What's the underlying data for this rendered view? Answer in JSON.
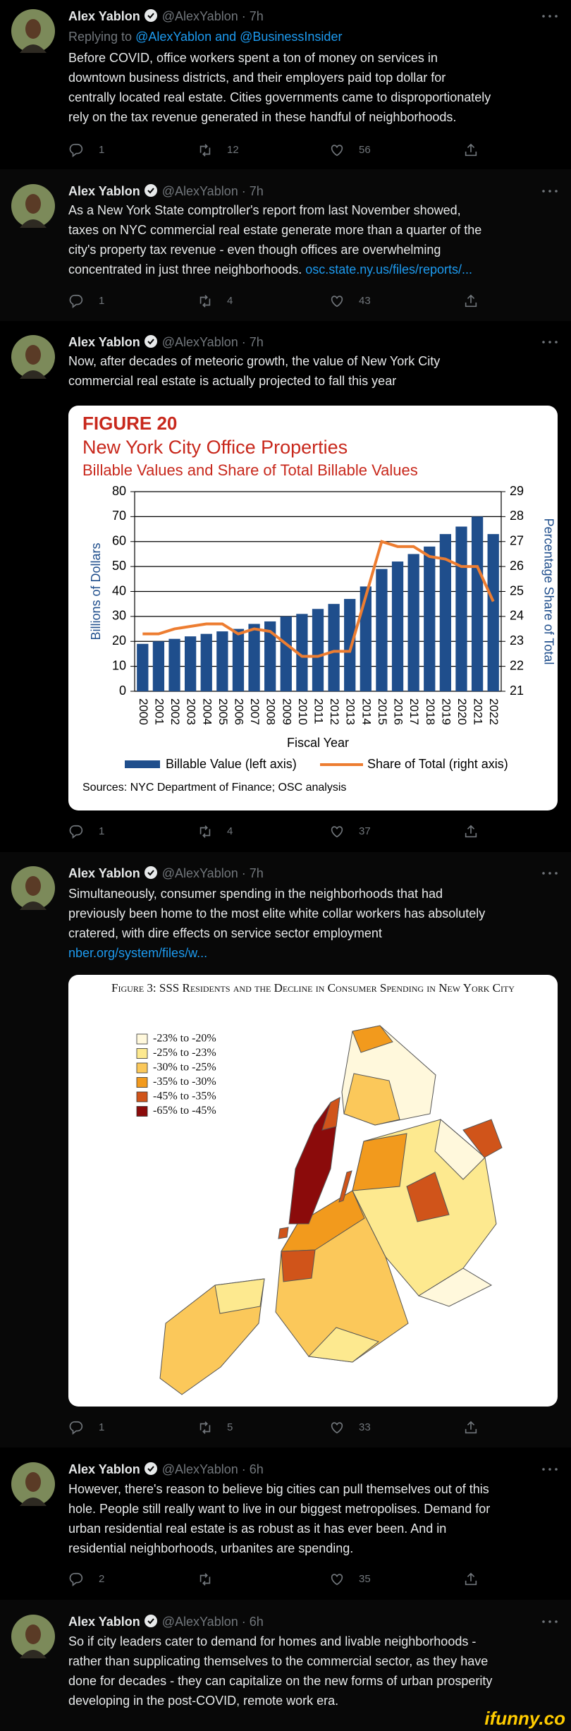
{
  "tweets": [
    {
      "name": "Alex Yablon",
      "handle": "@AlexYablon · 7h",
      "replying_label": "Replying to",
      "replying_to": "@AlexYablon and @BusinessInsider",
      "lines": [
        "Before COVID, office workers spent a ton of money on services in",
        "downtown business districts, and their employers paid top dollar for",
        "centrally located real estate. Cities governments came to disproportionately",
        "rely on the tax revenue generated in these handful of neighborhoods."
      ],
      "replies": 1,
      "retweets": 12,
      "likes": 56
    },
    {
      "name": "Alex Yablon",
      "handle": "@AlexYablon · 7h",
      "lines": [
        "As a New York State comptroller's report from last November showed,",
        "taxes on NYC commercial real estate generate more than a quarter of the",
        "city's property tax revenue - even though offices are overwhelming",
        {
          "text": "concentrated in just three neighborhoods.",
          "link": "osc.state.ny.us/files/reports/..."
        }
      ],
      "replies": 1,
      "retweets": 4,
      "likes": 43
    },
    {
      "name": "Alex Yablon",
      "handle": "@AlexYablon · 7h",
      "lines": [
        "Now, after decades of meteoric growth, the value of New York City",
        "commercial real estate is actually projected to fall this year"
      ],
      "replies": 1,
      "retweets": 4,
      "likes": 37
    },
    {
      "name": "Alex Yablon",
      "handle": "@AlexYablon · 7h",
      "lines": [
        "Simultaneously, consumer spending in the neighborhoods that had",
        "previously been home to the most elite white collar workers has absolutely",
        "cratered, with dire effects on service sector employment",
        {
          "link": "nber.org/system/files/w..."
        }
      ],
      "replies": 1,
      "retweets": 5,
      "likes": 33
    },
    {
      "name": "Alex Yablon",
      "handle": "@AlexYablon · 6h",
      "lines": [
        "However, there's reason to believe big cities can pull themselves out of this",
        "hole. People still really want to live in our biggest metropolises. Demand for",
        "urban residential real estate is as robust as it has ever been. And in",
        "residential neighborhoods, urbanites are spending."
      ],
      "replies": 2,
      "likes": 35
    },
    {
      "name": "Alex Yablon",
      "handle": "@AlexYablon · 6h",
      "lines": [
        "So if city leaders cater to demand for homes and livable neighborhoods -",
        "rather than supplicating themselves to the commercial sector, as they have",
        "done for decades - they can capitalize on the new forms of urban prosperity",
        "developing in the post-COVID, remote work era."
      ]
    }
  ],
  "chart_data": {
    "type": "bar",
    "title": "FIGURE 20",
    "subtitle": "New York City Office Properties",
    "subtitle2": "Billable Values and Share of Total Billable Values",
    "ylabel": "Billions of Dollars",
    "y2label": "Percentage Share of Total",
    "xlabel": "Fiscal Year",
    "source": "Sources: NYC Department of Finance; OSC analysis",
    "categories": [
      "2000",
      "2001",
      "2002",
      "2003",
      "2004",
      "2005",
      "2006",
      "2007",
      "2008",
      "2009",
      "2010",
      "2011",
      "2012",
      "2013",
      "2014",
      "2015",
      "2016",
      "2017",
      "2018",
      "2019",
      "2020",
      "2021",
      "2022"
    ],
    "series": [
      {
        "name": "Billable Value (left axis)",
        "type": "bar",
        "color": "#1f4e8c",
        "values": [
          19,
          20,
          21,
          22,
          23,
          24,
          25,
          27,
          28,
          30,
          31,
          33,
          35,
          37,
          42,
          49,
          52,
          55,
          58,
          63,
          66,
          70,
          63
        ]
      },
      {
        "name": "Share of Total (right axis)",
        "type": "line",
        "axis": "y2",
        "color": "#ed7d31",
        "values": [
          23.3,
          23.3,
          23.5,
          23.6,
          23.7,
          23.7,
          23.3,
          23.5,
          23.4,
          22.9,
          22.4,
          22.4,
          22.6,
          22.6,
          24.8,
          27.0,
          26.8,
          26.8,
          26.4,
          26.3,
          26.0,
          26.0,
          24.6
        ]
      }
    ],
    "ylim": [
      0,
      80
    ],
    "yticks": [
      0,
      10,
      20,
      30,
      40,
      50,
      60,
      70,
      80
    ],
    "y2lim": [
      21,
      29
    ],
    "y2ticks": [
      21,
      22,
      23,
      24,
      25,
      26,
      27,
      28,
      29
    ],
    "grid": true
  },
  "map": {
    "title": "Figure 3: SSS Residents and the Decline in Consumer Spending in New York City",
    "legend": [
      {
        "label": "-23% to -20%",
        "color": "#fff8dc"
      },
      {
        "label": "-25% to -23%",
        "color": "#fde98f"
      },
      {
        "label": "-30% to -25%",
        "color": "#fbc85a"
      },
      {
        "label": "-35% to -30%",
        "color": "#f29a1d"
      },
      {
        "label": "-45% to -35%",
        "color": "#d0541a"
      },
      {
        "label": "-65% to -45%",
        "color": "#8b0b0b"
      }
    ]
  },
  "watermark": "ifunny.co"
}
